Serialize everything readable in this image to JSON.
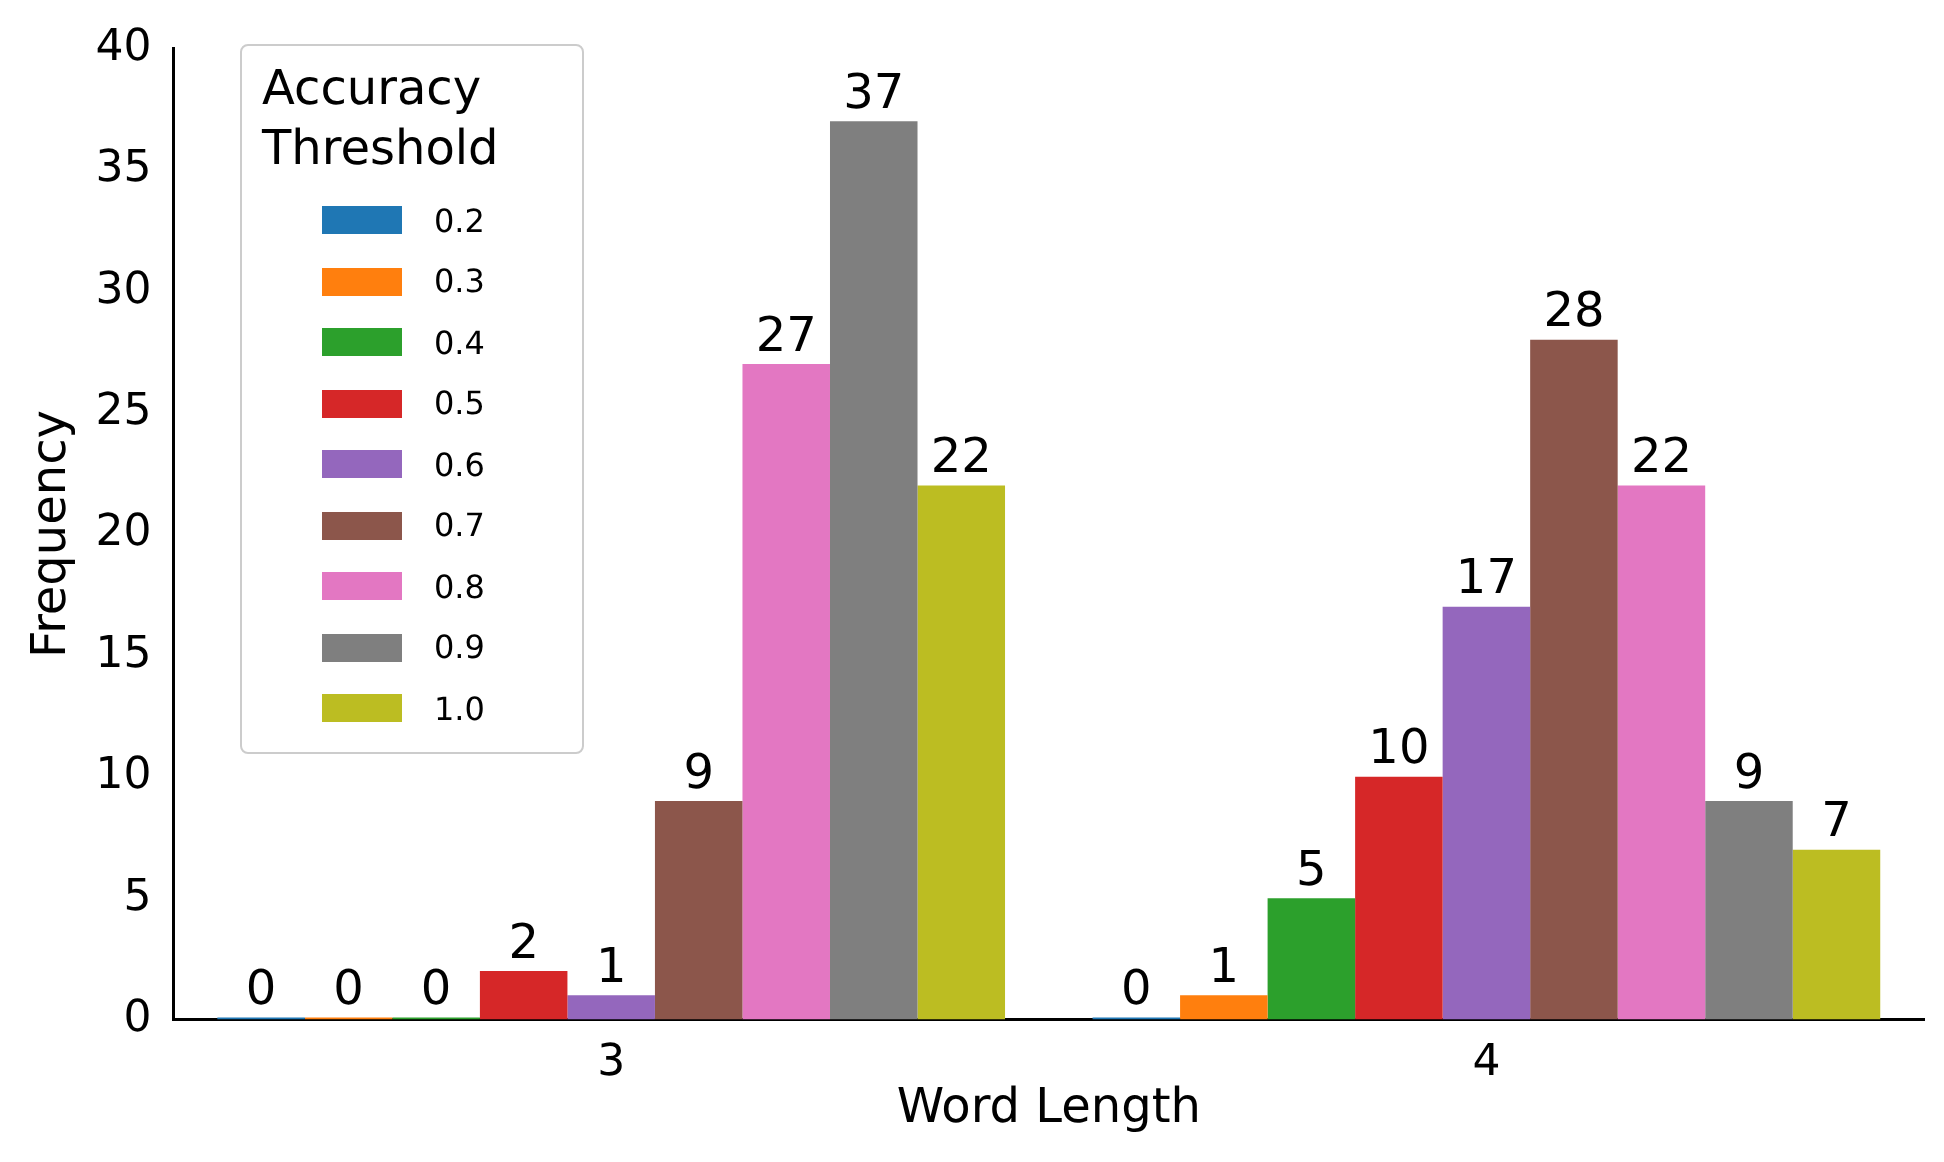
{
  "chart_data": {
    "type": "bar",
    "xlabel": "Word Length",
    "ylabel": "Frequency",
    "legend_title": "Accuracy Threshold",
    "legend": "top left",
    "data_labels": true,
    "grid": false,
    "categories": [
      "3",
      "4"
    ],
    "ylim": [
      0,
      40
    ],
    "yticks": [
      0,
      5,
      10,
      15,
      20,
      25,
      30,
      35,
      40
    ],
    "series": [
      {
        "name": "0.2",
        "color": "#1f77b4",
        "values": [
          0,
          0
        ]
      },
      {
        "name": "0.3",
        "color": "#ff7f0e",
        "values": [
          0,
          1
        ]
      },
      {
        "name": "0.4",
        "color": "#2ca02c",
        "values": [
          0,
          5
        ]
      },
      {
        "name": "0.5",
        "color": "#d62728",
        "values": [
          2,
          10
        ]
      },
      {
        "name": "0.6",
        "color": "#9467bd",
        "values": [
          1,
          17
        ]
      },
      {
        "name": "0.7",
        "color": "#8c564b",
        "values": [
          9,
          28
        ]
      },
      {
        "name": "0.8",
        "color": "#e377c2",
        "values": [
          27,
          22
        ]
      },
      {
        "name": "0.9",
        "color": "#7f7f7f",
        "values": [
          37,
          9
        ]
      },
      {
        "name": "1.0",
        "color": "#bcbd22",
        "values": [
          22,
          7
        ]
      }
    ]
  }
}
